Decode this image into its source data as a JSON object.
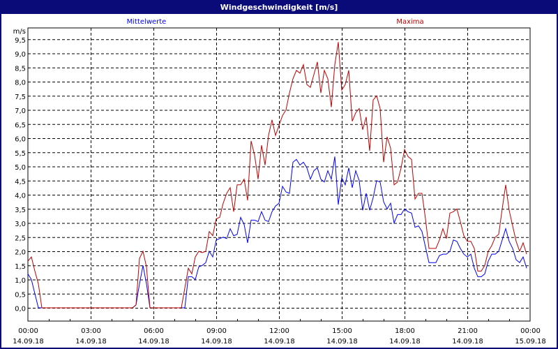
{
  "window": {
    "title": "Windgeschwindigkeit [m/s]"
  },
  "chart_data": {
    "type": "line",
    "title": "Windgeschwindigkeit [m/s]",
    "ylabel": "m/s",
    "ylim": [
      -0.45,
      9.9
    ],
    "yticks": [
      "0,0",
      "0,5",
      "1,0",
      "1,5",
      "2,0",
      "2,5",
      "3,0",
      "3,5",
      "4,0",
      "4,5",
      "5,0",
      "5,5",
      "6,0",
      "6,5",
      "7,0",
      "7,5",
      "8,0",
      "8,5",
      "9,0",
      "9,5"
    ],
    "xticks": [
      {
        "time": "00:00",
        "date": "14.09.18"
      },
      {
        "time": "03:00",
        "date": "14.09.18"
      },
      {
        "time": "06:00",
        "date": "14.09.18"
      },
      {
        "time": "09:00",
        "date": "14.09.18"
      },
      {
        "time": "12:00",
        "date": "14.09.18"
      },
      {
        "time": "15:00",
        "date": "14.09.18"
      },
      {
        "time": "18:00",
        "date": "14.09.18"
      },
      {
        "time": "21:00",
        "date": "14.09.18"
      },
      {
        "time": "00:00",
        "date": "15.09.18"
      }
    ],
    "x_range": [
      "14.09.18 00:00",
      "15.09.18 00:00"
    ],
    "x_interval_minutes": 10,
    "grid": true,
    "series": [
      {
        "name": "Mittelwerte",
        "color": "#0000ff",
        "values": [
          1.2,
          1.0,
          0.5,
          0,
          0,
          0,
          0,
          0,
          0,
          0,
          0,
          0,
          0,
          0,
          0,
          0,
          0,
          0,
          0,
          0,
          0,
          0,
          0,
          0,
          0,
          0,
          0,
          0,
          0,
          0,
          0,
          0.1,
          0.85,
          1.5,
          0.85,
          0,
          0,
          0,
          0,
          0,
          0,
          0,
          0,
          0,
          0,
          0,
          1.1,
          1.1,
          1.0,
          1.45,
          1.5,
          1.6,
          2.0,
          1.8,
          2.4,
          2.45,
          2.5,
          2.45,
          2.8,
          2.55,
          2.6,
          3.2,
          2.95,
          2.3,
          3.1,
          3.1,
          3.05,
          3.4,
          3.1,
          3.05,
          3.4,
          3.6,
          3.7,
          4.3,
          4.1,
          4.05,
          5.15,
          5.25,
          5.05,
          5.15,
          4.95,
          4.55,
          4.85,
          4.95,
          4.55,
          4.45,
          4.85,
          4.55,
          5.35,
          3.65,
          4.6,
          4.35,
          4.95,
          4.25,
          4.85,
          4.5,
          3.45,
          4.05,
          3.45,
          3.9,
          4.5,
          4.45,
          3.75,
          3.5,
          3.7,
          3.0,
          3.3,
          3.3,
          3.5,
          3.4,
          3.35,
          2.85,
          2.9,
          2.7,
          2.15,
          1.6,
          1.6,
          1.6,
          1.85,
          1.9,
          1.9,
          2.0,
          2.4,
          2.35,
          2.1,
          1.9,
          1.8,
          1.9,
          1.4,
          1.1,
          1.1,
          1.2,
          1.65,
          1.9,
          1.9,
          2.0,
          2.4,
          2.8,
          2.35,
          2.1,
          1.7,
          1.6,
          1.8,
          1.4
        ]
      },
      {
        "name": "Maxima",
        "color": "#c00000",
        "values": [
          1.65,
          1.8,
          1.3,
          0.85,
          0,
          0,
          0,
          0,
          0,
          0,
          0,
          0,
          0,
          0,
          0,
          0,
          0,
          0,
          0,
          0,
          0,
          0,
          0,
          0,
          0,
          0,
          0,
          0,
          0,
          0,
          0,
          0.1,
          1.75,
          2.0,
          1.45,
          0,
          0,
          0,
          0,
          0,
          0,
          0,
          0,
          0,
          0,
          0.7,
          1.4,
          1.2,
          1.8,
          2.0,
          1.95,
          2.0,
          2.7,
          2.55,
          3.15,
          3.2,
          3.7,
          4.05,
          4.25,
          3.4,
          4.35,
          4.35,
          4.55,
          3.8,
          5.9,
          5.4,
          4.55,
          5.75,
          5.05,
          6.1,
          6.65,
          6.1,
          6.45,
          6.8,
          7.0,
          7.6,
          8.1,
          8.4,
          8.3,
          8.6,
          7.9,
          7.8,
          8.25,
          8.7,
          7.6,
          8.4,
          8.1,
          7.1,
          8.6,
          9.4,
          7.7,
          7.9,
          8.4,
          6.6,
          6.9,
          7.05,
          6.3,
          6.75,
          5.55,
          7.35,
          7.5,
          7.05,
          5.15,
          6.05,
          5.65,
          4.35,
          4.45,
          4.95,
          5.6,
          5.35,
          5.25,
          3.85,
          4.05,
          4.05,
          3.15,
          2.1,
          2.1,
          2.1,
          2.4,
          2.8,
          2.45,
          3.35,
          3.4,
          3.5,
          3.05,
          2.55,
          2.35,
          2.35,
          2.1,
          1.3,
          1.3,
          1.5,
          2.0,
          2.2,
          2.5,
          2.6,
          3.5,
          4.35,
          3.45,
          2.9,
          2.35,
          2.0,
          2.3,
          1.9
        ]
      }
    ]
  }
}
